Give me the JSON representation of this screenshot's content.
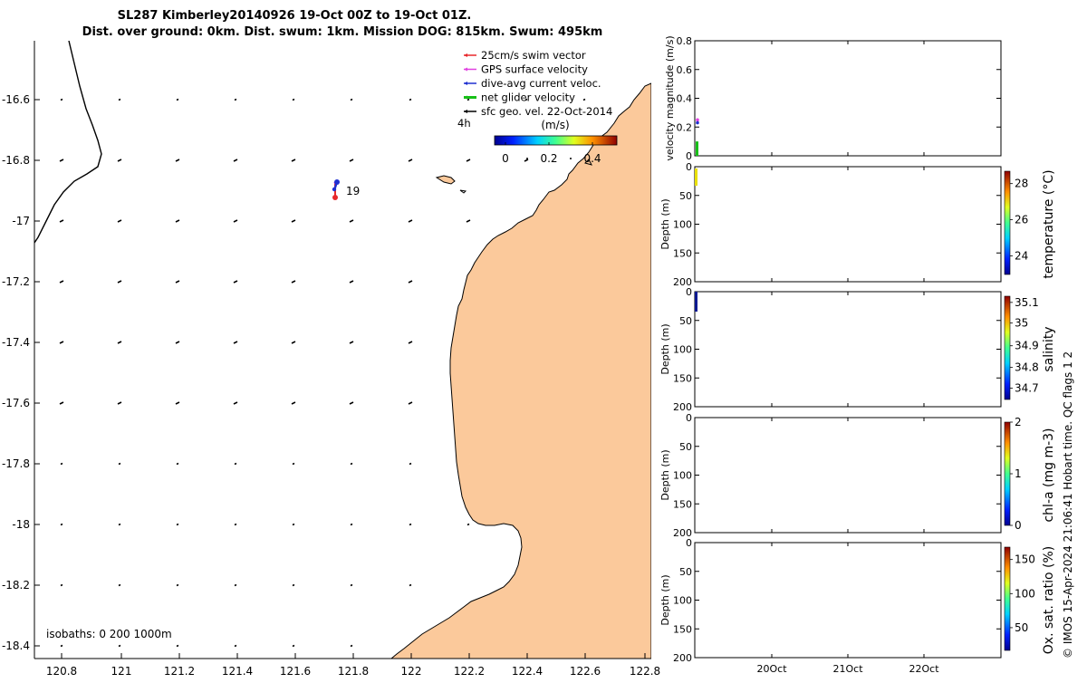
{
  "title": {
    "line1": "SL287 Kimberley20140926 19-Oct 00Z to 19-Oct 01Z.",
    "line2": "Dist. over ground: 0km. Dist. swum: 1km. Mission DOG: 815km. Swum: 495km"
  },
  "map": {
    "x_ticks": [
      "120.8",
      "121",
      "121.2",
      "121.4",
      "121.6",
      "121.8",
      "122",
      "122.2",
      "122.4",
      "122.6",
      "122.8"
    ],
    "y_ticks": [
      "-16.6",
      "-16.8",
      "-17",
      "-17.2",
      "-17.4",
      "-17.6",
      "-17.8",
      "-18",
      "-18.2",
      "-18.4"
    ],
    "xlim": [
      120.7,
      122.8
    ],
    "ylim": [
      -18.45,
      -16.4
    ],
    "glider_label": "19",
    "isobaths_label": "isobaths: 0   200  1000m",
    "legend": [
      {
        "label": "25cm/s swim vector",
        "color": "#e8282b"
      },
      {
        "label": "GPS surface velocity",
        "color": "#e040e0"
      },
      {
        "label": "dive-avg current veloc.",
        "color": "#2030d0"
      },
      {
        "label": "net glider velocity",
        "color": "#18c018"
      },
      {
        "label": "sfc geo. vel. 22-Oct-2014",
        "color": "#000000"
      }
    ],
    "legend_note": "4h",
    "colorbar": {
      "unit": "(m/s)",
      "ticks": [
        "0",
        "0.2",
        "0.4"
      ]
    },
    "land_color": "#fbc99b"
  },
  "panels": [
    {
      "ylabel": "velocity magnitude (m/s)",
      "ylim": [
        0,
        0.8
      ],
      "y_ticks": [
        "0",
        "0.2",
        "0.4",
        "0.6",
        "0.8"
      ]
    },
    {
      "ylabel": "Depth (m)",
      "ylim": [
        0,
        200
      ],
      "y_ticks": [
        "0",
        "50",
        "100",
        "150",
        "200"
      ],
      "cbar_label": "temperature (°C)",
      "cbar_ticks": [
        "28",
        "26",
        "24"
      ]
    },
    {
      "ylabel": "Depth (m)",
      "ylim": [
        0,
        200
      ],
      "y_ticks": [
        "0",
        "50",
        "100",
        "150",
        "200"
      ],
      "cbar_label": "salinity",
      "cbar_ticks": [
        "35.1",
        "35",
        "34.9",
        "34.8",
        "34.7"
      ]
    },
    {
      "ylabel": "Depth (m)",
      "ylim": [
        0,
        200
      ],
      "y_ticks": [
        "0",
        "50",
        "100",
        "150",
        "200"
      ],
      "cbar_label": "chl-a (mg m-3)",
      "cbar_ticks": [
        "2",
        "1",
        "0"
      ]
    },
    {
      "ylabel": "Depth (m)",
      "ylim": [
        0,
        200
      ],
      "y_ticks": [
        "0",
        "50",
        "100",
        "150",
        "200"
      ],
      "cbar_label": "Ox. sat. ratio (%)",
      "cbar_ticks": [
        "150",
        "100",
        "50"
      ]
    }
  ],
  "time_ticks": [
    "20Oct",
    "21Oct",
    "22Oct"
  ],
  "credit": "© IMOS 15-Apr-2024 21:06:41 Hobart time. QC flags 1  2",
  "chart_data": [
    {
      "type": "scatter",
      "xlabel": "",
      "ylabel": "",
      "x_ticks": [
        120.8,
        121.0,
        121.2,
        121.4,
        121.6,
        121.8,
        122.0,
        122.2,
        122.4,
        122.6,
        122.8
      ],
      "y_ticks": [
        -16.6,
        -16.8,
        -17.0,
        -17.2,
        -17.4,
        -17.6,
        -17.8,
        -18.0,
        -18.2,
        -18.4
      ],
      "glider_position": {
        "lon": 121.75,
        "lat": -16.9,
        "label": "19"
      }
    },
    {
      "type": "line",
      "ylabel": "velocity magnitude (m/s)",
      "ylim": [
        0,
        0.8
      ],
      "series": [
        {
          "name": "GPS surface velocity",
          "values": [
            0.25
          ]
        },
        {
          "name": "dive-avg current veloc.",
          "values": [
            0.23
          ]
        },
        {
          "name": "net glider velocity",
          "values": [
            0.1
          ]
        }
      ]
    },
    {
      "type": "scatter",
      "ylabel": "Depth (m)",
      "ylim": [
        0,
        200
      ],
      "cbar_label": "temperature (°C)",
      "depth_range": [
        0,
        30
      ],
      "value": 27
    }
  ]
}
